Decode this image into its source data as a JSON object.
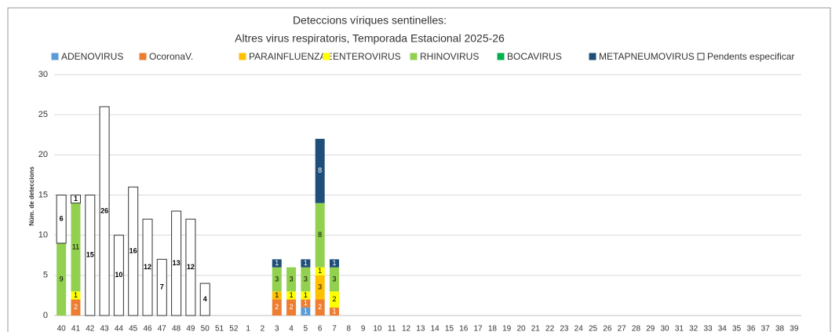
{
  "chart_data": {
    "type": "stacked_bar",
    "title": "Deteccions víriques sentinelles:",
    "subtitle": "Altres virus respiratoris,  Temporada Estacional 2025-26",
    "y_label": "Núm. de deteccions",
    "categories": [
      "40",
      "41",
      "42",
      "43",
      "44",
      "45",
      "46",
      "47",
      "48",
      "49",
      "50",
      "51",
      "52",
      "1",
      "2",
      "3",
      "4",
      "5",
      "6",
      "7",
      "8",
      "9",
      "10",
      "11",
      "12",
      "13",
      "14",
      "15",
      "16",
      "17",
      "18",
      "19",
      "20",
      "21",
      "22",
      "23",
      "24",
      "25",
      "26",
      "27",
      "28",
      "29",
      "30",
      "31",
      "32",
      "33",
      "34",
      "35",
      "36",
      "37",
      "38",
      "39"
    ],
    "series": [
      {
        "name": "ADENOVIRUS",
        "color": "#5b9bd5",
        "values": [
          null,
          null,
          null,
          null,
          null,
          null,
          null,
          null,
          null,
          null,
          null,
          null,
          null,
          null,
          null,
          null,
          null,
          1,
          null,
          null,
          null,
          null,
          null,
          null,
          null,
          null,
          null,
          null,
          null,
          null,
          null,
          null,
          null,
          null,
          null,
          null,
          null,
          null,
          null,
          null,
          null,
          null,
          null,
          null,
          null,
          null,
          null,
          null,
          null,
          null,
          null,
          null
        ]
      },
      {
        "name": "OcoronaV.",
        "color": "#ed7d31",
        "values": [
          null,
          2,
          null,
          null,
          null,
          null,
          null,
          null,
          null,
          null,
          null,
          null,
          null,
          null,
          null,
          2,
          2,
          1,
          2,
          1,
          null,
          null,
          null,
          null,
          null,
          null,
          null,
          null,
          null,
          null,
          null,
          null,
          null,
          null,
          null,
          null,
          null,
          null,
          null,
          null,
          null,
          null,
          null,
          null,
          null,
          null,
          null,
          null,
          null,
          null,
          null,
          null
        ]
      },
      {
        "name": "PARAINFLUENZAE",
        "color": "#ffc000",
        "values": [
          null,
          null,
          null,
          null,
          null,
          null,
          null,
          null,
          null,
          null,
          null,
          null,
          null,
          null,
          null,
          1,
          null,
          null,
          3,
          null,
          null,
          null,
          null,
          null,
          null,
          null,
          null,
          null,
          null,
          null,
          null,
          null,
          null,
          null,
          null,
          null,
          null,
          null,
          null,
          null,
          null,
          null,
          null,
          null,
          null,
          null,
          null,
          null,
          null,
          null,
          null,
          null
        ]
      },
      {
        "name": "ENTEROVIRUS",
        "color": "#ffff00",
        "values": [
          null,
          1,
          null,
          null,
          null,
          null,
          null,
          null,
          null,
          null,
          null,
          null,
          null,
          null,
          null,
          null,
          1,
          1,
          1,
          2,
          null,
          null,
          null,
          null,
          null,
          null,
          null,
          null,
          null,
          null,
          null,
          null,
          null,
          null,
          null,
          null,
          null,
          null,
          null,
          null,
          null,
          null,
          null,
          null,
          null,
          null,
          null,
          null,
          null,
          null,
          null,
          null
        ]
      },
      {
        "name": "RHINOVIRUS",
        "color": "#92d050",
        "values": [
          9,
          11,
          null,
          null,
          null,
          null,
          null,
          null,
          null,
          null,
          null,
          null,
          null,
          null,
          null,
          3,
          3,
          3,
          8,
          3,
          null,
          null,
          null,
          null,
          null,
          null,
          null,
          null,
          null,
          null,
          null,
          null,
          null,
          null,
          null,
          null,
          null,
          null,
          null,
          null,
          null,
          null,
          null,
          null,
          null,
          null,
          null,
          null,
          null,
          null,
          null,
          null
        ]
      },
      {
        "name": "BOCAVIRUS",
        "color": "#00b050",
        "values": [
          null,
          null,
          null,
          null,
          null,
          null,
          null,
          null,
          null,
          null,
          null,
          null,
          null,
          null,
          null,
          null,
          null,
          null,
          null,
          null,
          null,
          null,
          null,
          null,
          null,
          null,
          null,
          null,
          null,
          null,
          null,
          null,
          null,
          null,
          null,
          null,
          null,
          null,
          null,
          null,
          null,
          null,
          null,
          null,
          null,
          null,
          null,
          null,
          null,
          null,
          null,
          null
        ]
      },
      {
        "name": "METAPNEUMOVIRUS",
        "color": "#1f4e79",
        "values": [
          null,
          null,
          null,
          null,
          null,
          null,
          null,
          null,
          null,
          null,
          null,
          null,
          null,
          null,
          null,
          1,
          null,
          1,
          8,
          1,
          null,
          null,
          null,
          null,
          null,
          null,
          null,
          null,
          null,
          null,
          null,
          null,
          null,
          null,
          null,
          null,
          null,
          null,
          null,
          null,
          null,
          null,
          null,
          null,
          null,
          null,
          null,
          null,
          null,
          null,
          null,
          null
        ]
      },
      {
        "name": "Pendents especificar",
        "color": "#ffffff",
        "values": [
          6,
          1,
          15,
          26,
          10,
          16,
          12,
          7,
          13,
          12,
          4,
          null,
          null,
          null,
          null,
          null,
          null,
          null,
          null,
          null,
          null,
          null,
          null,
          null,
          null,
          null,
          null,
          null,
          null,
          null,
          null,
          null,
          null,
          null,
          null,
          null,
          null,
          null,
          null,
          null,
          null,
          null,
          null,
          null,
          null,
          null,
          null,
          null,
          null,
          null,
          null,
          null
        ]
      }
    ],
    "ylim": [
      0,
      30
    ],
    "yticks": [
      0,
      5,
      10,
      15,
      20,
      25,
      30
    ],
    "grid": true,
    "legend": "top"
  }
}
